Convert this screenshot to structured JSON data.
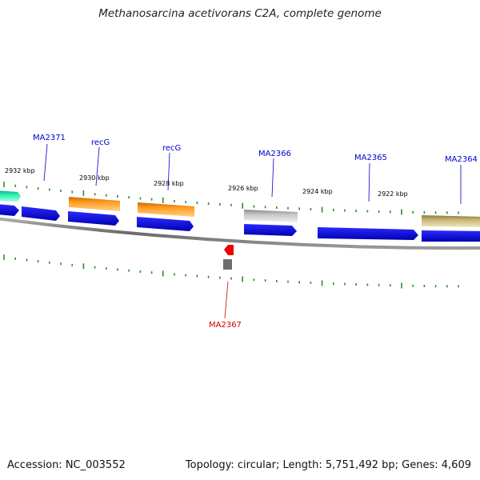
{
  "title": "Methanosarcina acetivorans C2A, complete genome",
  "footer": {
    "accession": "Accession: NC_003552",
    "summary": "Topology: circular; Length: 5,751,492 bp; Genes: 4,609"
  },
  "colors": {
    "backbone": "#8a8a8a",
    "tick": "#2e8b2e",
    "label_forward": "#0000cc",
    "label_reverse": "#cc0000",
    "cds_blue": "#1111dd",
    "rna_orange": "#f7921e",
    "teal": "#22e0a0",
    "olive": "#c0b070",
    "gray": "#bdbdbd",
    "dark_gray": "#777777",
    "red_feature": "#ee0000"
  },
  "position_labels": [
    {
      "text": "2932 kbp",
      "kbp": 2932
    },
    {
      "text": "2930 kbp",
      "kbp": 2930
    },
    {
      "text": "2928 kbp",
      "kbp": 2928
    },
    {
      "text": "2926 kbp",
      "kbp": 2926
    },
    {
      "text": "2924 kbp",
      "kbp": 2924
    },
    {
      "text": "2922 kbp",
      "kbp": 2922
    }
  ],
  "gene_labels": [
    {
      "text": "MA2371",
      "strand": "forward"
    },
    {
      "text": "recG",
      "strand": "forward"
    },
    {
      "text": "recG",
      "strand": "forward"
    },
    {
      "text": "MA2366",
      "strand": "forward"
    },
    {
      "text": "MA2365",
      "strand": "forward"
    },
    {
      "text": "MA2364",
      "strand": "forward"
    },
    {
      "text": "MA2367",
      "strand": "reverse"
    }
  ]
}
